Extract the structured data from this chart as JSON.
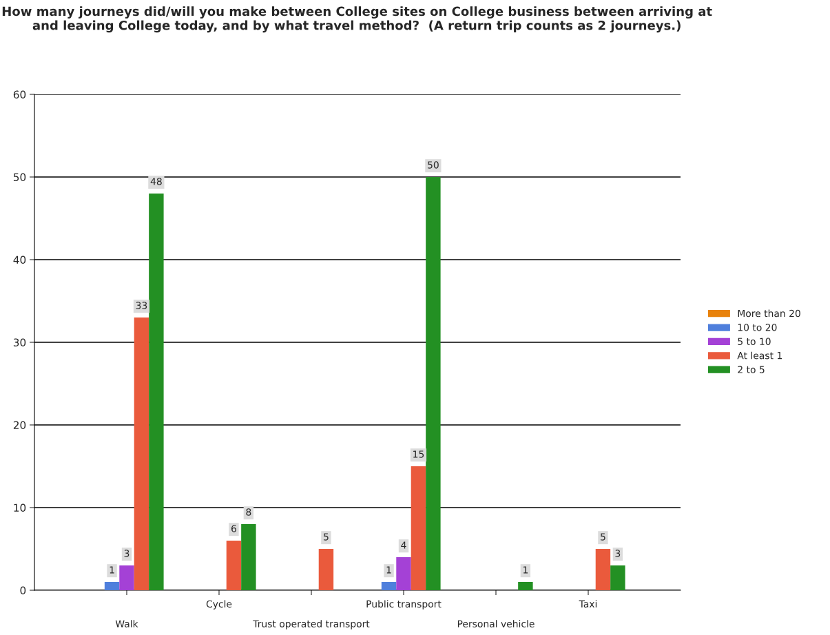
{
  "chart_data": {
    "type": "bar",
    "title": "How many journeys did/will you make between College sites on College business between arriving at and leaving College today, and by what travel method?  (A return trip counts as 2 journeys.)",
    "categories": [
      "Walk",
      "Cycle",
      "Trust operated transport",
      "Public transport",
      "Personal vehicle",
      "Taxi"
    ],
    "series": [
      {
        "name": "More than 20",
        "color": "#e8820c",
        "values": [
          null,
          null,
          null,
          null,
          null,
          null
        ]
      },
      {
        "name": "10 to 20",
        "color": "#4f7fdc",
        "values": [
          1,
          null,
          null,
          1,
          null,
          null
        ]
      },
      {
        "name": "5 to 10",
        "color": "#a441d6",
        "values": [
          3,
          null,
          null,
          4,
          null,
          null
        ]
      },
      {
        "name": "At least 1",
        "color": "#ea5a3c",
        "values": [
          33,
          6,
          5,
          15,
          null,
          5
        ]
      },
      {
        "name": "2 to 5",
        "color": "#239023",
        "values": [
          48,
          8,
          null,
          50,
          1,
          3
        ]
      }
    ],
    "ylim": [
      0,
      60
    ],
    "yticks": [
      0,
      10,
      20,
      30,
      40,
      50,
      60
    ],
    "grid": "y",
    "legend": "right",
    "data_labels": true
  }
}
